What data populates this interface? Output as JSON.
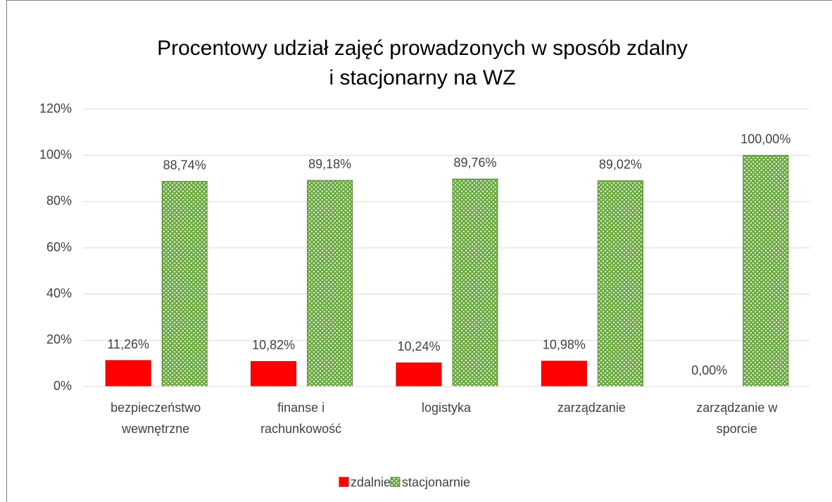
{
  "chart_data": {
    "type": "bar",
    "title": [
      "Procentowy udział zajęć prowadzonych w sposób zdalny",
      "i stacjonarny na WZ"
    ],
    "categories": [
      [
        "bezpieczeństwo",
        "wewnętrzne"
      ],
      [
        "finanse i",
        "rachunkowość"
      ],
      [
        "logistyka"
      ],
      [
        "zarządzanie"
      ],
      [
        "zarządzanie w",
        "sporcie"
      ]
    ],
    "series": [
      {
        "name": "zdalnie",
        "color": "#ff0000",
        "values": [
          11.26,
          10.82,
          10.24,
          10.98,
          0
        ],
        "value_labels": [
          "11,26%",
          "10,82%",
          "10,24%",
          "10,98%",
          "0,00%"
        ]
      },
      {
        "name": "stacjonarnie",
        "color": "#70ad47",
        "values": [
          88.74,
          89.18,
          89.76,
          89.02,
          100
        ],
        "value_labels": [
          "88,74%",
          "89,18%",
          "89,76%",
          "89,02%",
          "100,00%"
        ]
      }
    ],
    "ylim": [
      0,
      120
    ],
    "yticks": [
      {
        "value": 0,
        "label": "0%"
      },
      {
        "value": 20,
        "label": "20%"
      },
      {
        "value": 40,
        "label": "40%"
      },
      {
        "value": 60,
        "label": "60%"
      },
      {
        "value": 80,
        "label": "80%"
      },
      {
        "value": 100,
        "label": "100%"
      },
      {
        "value": 120,
        "label": "120%"
      }
    ],
    "grid": true,
    "legend": "bottom"
  }
}
